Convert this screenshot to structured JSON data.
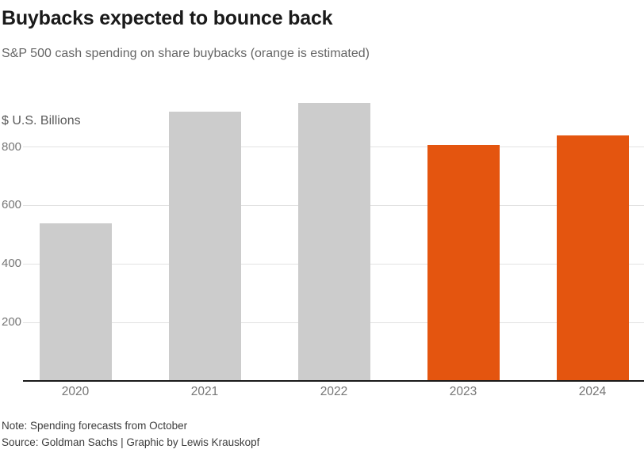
{
  "header": {
    "title": "Buybacks expected to bounce back",
    "subtitle": "S&P 500 cash spending on share buybacks (orange is estimated)"
  },
  "chart_data": {
    "type": "bar",
    "title": "Buybacks expected to bounce back",
    "subtitle": "S&P 500 cash spending on share buybacks (orange is estimated)",
    "unit_label": "$ U.S. Billions",
    "categories": [
      "2020",
      "2021",
      "2022",
      "2023",
      "2024"
    ],
    "values": [
      540,
      920,
      950,
      808,
      840
    ],
    "estimated": [
      false,
      false,
      false,
      true,
      true
    ],
    "y_ticks": [
      "200",
      "400",
      "600",
      "800"
    ],
    "ylim": [
      0,
      965
    ],
    "grid": true,
    "legend_position": "none",
    "colors": {
      "actual": "#cccccc",
      "estimated": "#e4550f",
      "grid": "#e2e2e2",
      "axis": "#1a1a1a"
    }
  },
  "footer": {
    "note": "Note: Spending forecasts from October",
    "source": "Source: Goldman Sachs | Graphic by Lewis Krauskopf"
  }
}
